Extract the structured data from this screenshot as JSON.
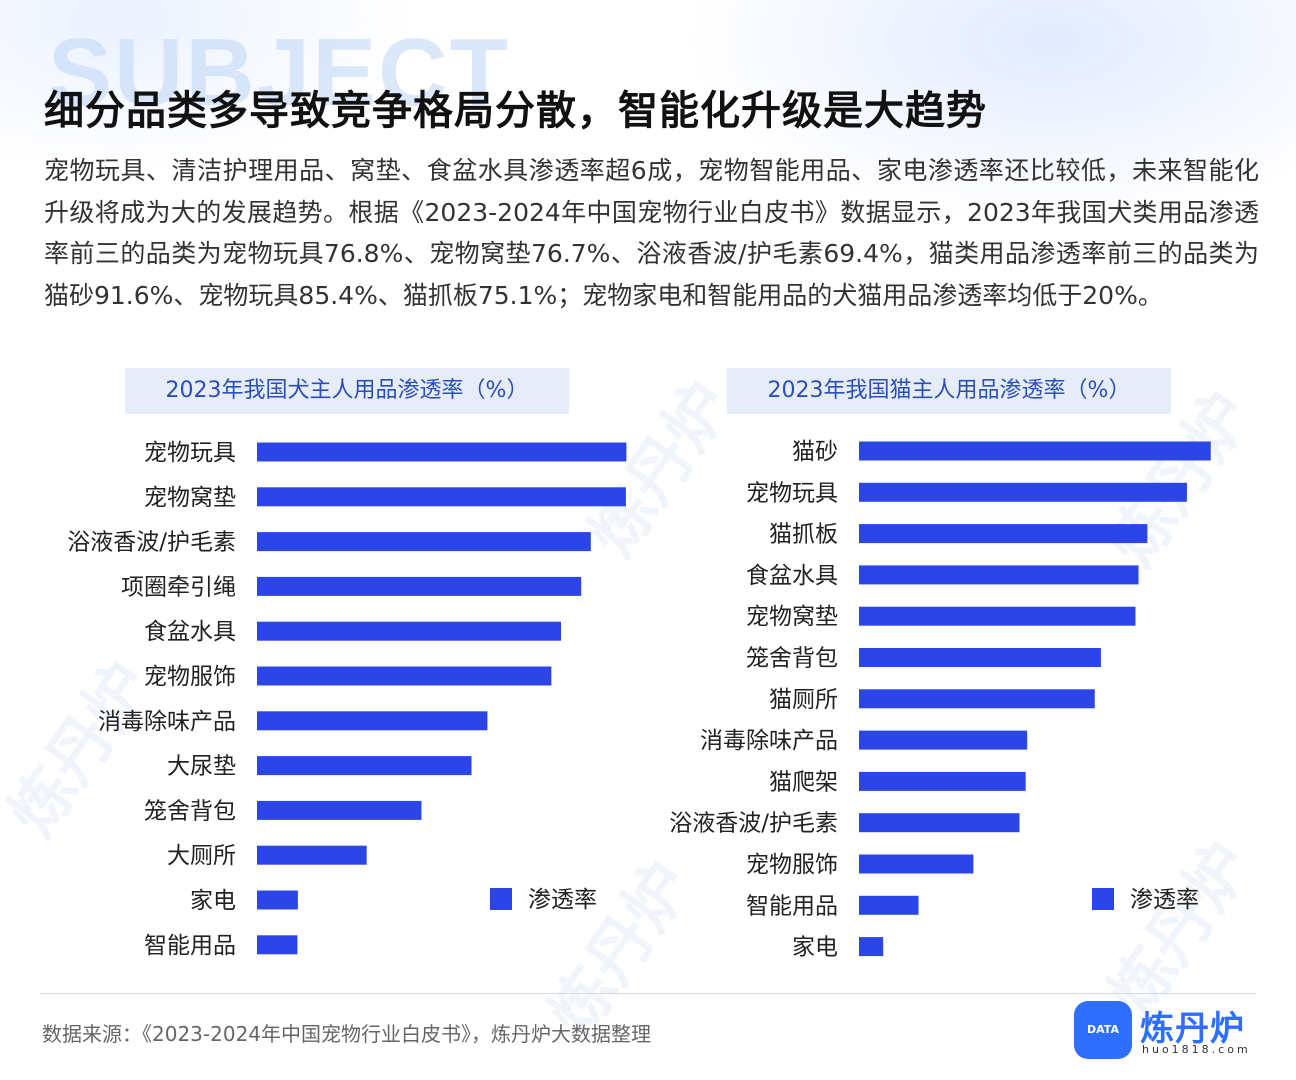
{
  "header": {
    "watermark": "SUBJECT",
    "title": "细分品类多导致竞争格局分散，智能化升级是大趋势",
    "description": "宠物玩具、清洁护理用品、窝垫、食盆水具渗透率超6成，宠物智能用品、家电渗透率还比较低，未来智能化升级将成为大的发展趋势。根据《2023-2024年中国宠物行业白皮书》数据显示，2023年我国犬类用品渗透率前三的品类为宠物玩具76.8%、宠物窝垫76.7%、浴液香波/护毛素69.4%，猫类用品渗透率前三的品类为猫砂91.6%、宠物玩具85.4%、猫抓板75.1%；宠物家电和智能用品的犬猫用品渗透率均低于20%。"
  },
  "colors": {
    "bar": "#2b45e6",
    "panel_bg": "#e6ecf8",
    "panel_text": "#2b4fb8",
    "brand": "#2f6fff"
  },
  "chart_data": [
    {
      "type": "bar",
      "orientation": "horizontal",
      "title": "2023年我国犬主人用品渗透率（%）",
      "categories": [
        "宠物玩具",
        "宠物窝垫",
        "浴液香波/护毛素",
        "项圈牵引绳",
        "食盆水具",
        "宠物服饰",
        "消毒除味产品",
        "大尿垫",
        "笼舍背包",
        "大厕所",
        "家电",
        "智能用品"
      ],
      "series": [
        {
          "name": "渗透率",
          "values": [
            76.8,
            76.7,
            69.4,
            67.4,
            63.2,
            61.2,
            47.9,
            44.6,
            34.2,
            22.8,
            8.5,
            8.4
          ]
        }
      ],
      "legend": "bottom-right",
      "grid": false
    },
    {
      "type": "bar",
      "orientation": "horizontal",
      "title": "2023年我国猫主人用品渗透率（%）",
      "categories": [
        "猫砂",
        "宠物玩具",
        "猫抓板",
        "食盆水具",
        "宠物窝垫",
        "笼舍背包",
        "猫厕所",
        "消毒除味产品",
        "猫爬架",
        "浴液香波/护毛素",
        "宠物服饰",
        "智能用品",
        "家电"
      ],
      "series": [
        {
          "name": "渗透率",
          "values": [
            91.6,
            85.4,
            75.1,
            72.8,
            72.0,
            63.0,
            61.4,
            43.8,
            43.4,
            41.8,
            29.8,
            15.5,
            6.3
          ]
        }
      ],
      "legend": "bottom-right",
      "grid": false
    }
  ],
  "footer": {
    "source": "数据来源：《2023-2024年中国宠物行业白皮书》，炼丹炉大数据整理",
    "logo_name": "炼丹炉",
    "logo_badge": "DATA",
    "logo_url": "huo1818.com"
  }
}
